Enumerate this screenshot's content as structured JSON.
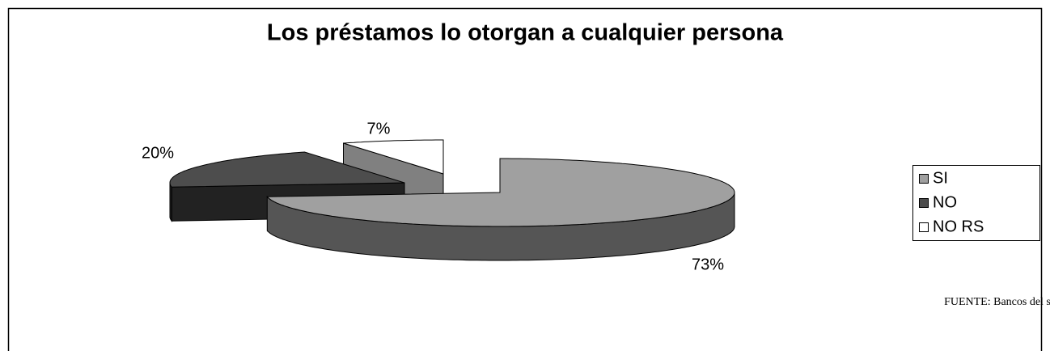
{
  "chart_data": {
    "type": "pie3d",
    "title": "Los préstamos lo otorgan a cualquier persona",
    "categories": [
      "SI",
      "NO",
      "NO RS"
    ],
    "values": [
      73,
      20,
      7
    ],
    "value_labels": [
      "73%",
      "20%",
      "7%"
    ],
    "colors": [
      "#a0a0a0",
      "#4d4d4d",
      "#ffffff"
    ],
    "legend": "right",
    "source": "FUENTE: Bancos del sistema."
  }
}
